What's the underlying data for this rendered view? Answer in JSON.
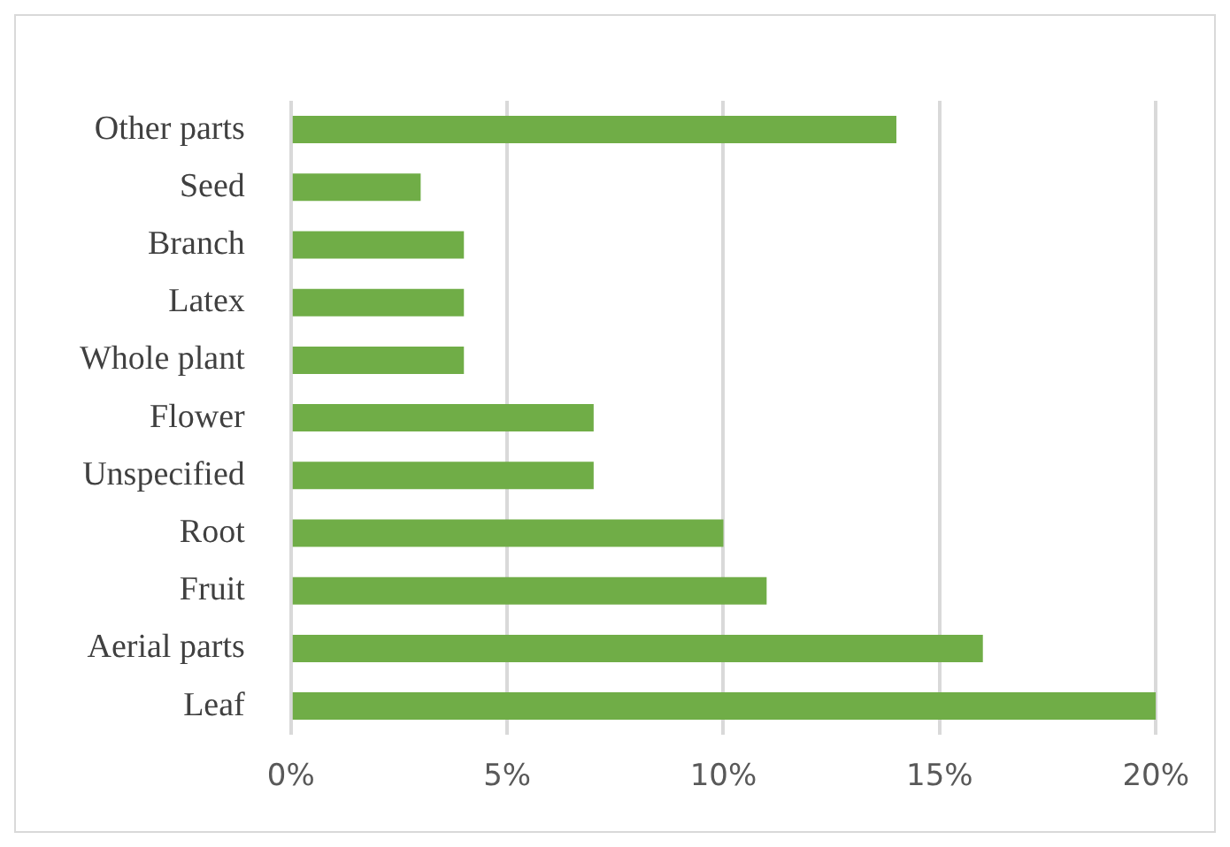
{
  "chart_data": {
    "type": "bar",
    "orientation": "horizontal",
    "categories": [
      "Other parts",
      "Seed",
      "Branch",
      "Latex",
      "Whole plant",
      "Flower",
      "Unspecified",
      "Root",
      "Fruit",
      "Aerial parts",
      "Leaf"
    ],
    "values": [
      14,
      3,
      4,
      4,
      4,
      7,
      7,
      10,
      11,
      16,
      20
    ],
    "color": "#70ad47",
    "xlim": [
      0,
      20
    ],
    "xticks": [
      {
        "value": 0,
        "label": "0%"
      },
      {
        "value": 5,
        "label": "5%"
      },
      {
        "value": 10,
        "label": "10%"
      },
      {
        "value": 15,
        "label": "15%"
      },
      {
        "value": 20,
        "label": "20%"
      }
    ],
    "grid": "x"
  }
}
